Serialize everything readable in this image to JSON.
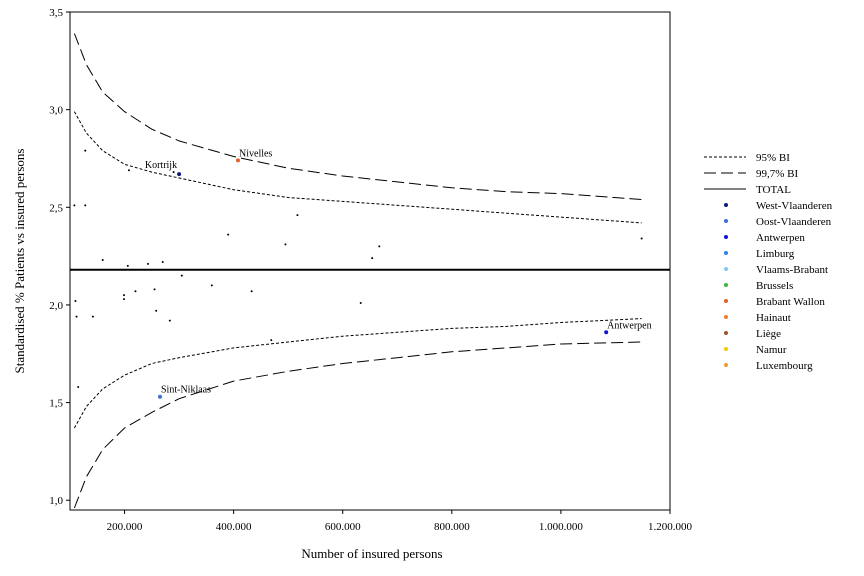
{
  "chart_data": {
    "type": "scatter",
    "xlabel": "Number of insured persons",
    "ylabel": "Standardised % Patients vs insured persons",
    "xlim": [
      100000,
      1200000
    ],
    "ylim": [
      0.95,
      3.5
    ],
    "xticks": [
      200000,
      400000,
      600000,
      800000,
      1000000,
      1200000
    ],
    "xtick_labels": [
      "200.000",
      "400.000",
      "600.000",
      "800.000",
      "1.000.000",
      "1.200.000"
    ],
    "yticks": [
      1.0,
      1.5,
      2.0,
      2.5,
      3.0,
      3.5
    ],
    "ytick_labels": [
      "1,0",
      "1,5",
      "2,0",
      "2,5",
      "3,0",
      "3,5"
    ],
    "total": 2.18,
    "funnel": {
      "x": [
        108000,
        130000,
        160000,
        200000,
        250000,
        300000,
        400000,
        500000,
        600000,
        700000,
        800000,
        900000,
        1000000,
        1148000
      ],
      "ci95_upper": [
        2.99,
        2.88,
        2.79,
        2.72,
        2.68,
        2.65,
        2.59,
        2.55,
        2.53,
        2.51,
        2.49,
        2.47,
        2.45,
        2.42
      ],
      "ci95_lower": [
        1.37,
        1.48,
        1.57,
        1.64,
        1.7,
        1.73,
        1.78,
        1.81,
        1.84,
        1.86,
        1.88,
        1.89,
        1.91,
        1.93
      ],
      "ci997_upper": [
        3.39,
        3.23,
        3.09,
        2.99,
        2.9,
        2.84,
        2.76,
        2.7,
        2.66,
        2.63,
        2.6,
        2.58,
        2.57,
        2.54
      ],
      "ci997_lower": [
        0.96,
        1.12,
        1.26,
        1.37,
        1.45,
        1.52,
        1.61,
        1.66,
        1.7,
        1.73,
        1.76,
        1.78,
        1.8,
        1.81
      ]
    },
    "legend": {
      "position": "right",
      "lines": [
        {
          "label": "95% BI",
          "style": "dotted"
        },
        {
          "label": "99,7% BI",
          "style": "dashed"
        },
        {
          "label": "TOTAL",
          "style": "solid"
        }
      ],
      "provinces": [
        {
          "label": "West-Vlaanderen",
          "color": "#0b1f7a"
        },
        {
          "label": "Oost-Vlaanderen",
          "color": "#3f6fd6"
        },
        {
          "label": "Antwerpen",
          "color": "#1414d6"
        },
        {
          "label": "Limburg",
          "color": "#2a86e6"
        },
        {
          "label": "Vlaams-Brabant",
          "color": "#7fc6f0"
        },
        {
          "label": "Brussels",
          "color": "#3cb83c"
        },
        {
          "label": "Brabant Wallon",
          "color": "#e0622a"
        },
        {
          "label": "Hainaut",
          "color": "#f07d2a"
        },
        {
          "label": "Liège",
          "color": "#a0522d"
        },
        {
          "label": "Namur",
          "color": "#f5c800"
        },
        {
          "label": "Luxembourg",
          "color": "#f09a30"
        }
      ]
    },
    "points": [
      {
        "x": 108000,
        "y": 2.51
      },
      {
        "x": 110000,
        "y": 2.02
      },
      {
        "x": 112000,
        "y": 1.94
      },
      {
        "x": 115000,
        "y": 1.58
      },
      {
        "x": 128000,
        "y": 2.79
      },
      {
        "x": 128000,
        "y": 2.51
      },
      {
        "x": 142000,
        "y": 1.94
      },
      {
        "x": 160000,
        "y": 2.23
      },
      {
        "x": 199000,
        "y": 2.05
      },
      {
        "x": 199000,
        "y": 2.03
      },
      {
        "x": 206000,
        "y": 2.2
      },
      {
        "x": 208000,
        "y": 2.69
      },
      {
        "x": 220000,
        "y": 2.07
      },
      {
        "x": 243000,
        "y": 2.21
      },
      {
        "x": 255000,
        "y": 2.08
      },
      {
        "x": 258000,
        "y": 1.97
      },
      {
        "x": 270000,
        "y": 2.22
      },
      {
        "x": 283000,
        "y": 1.92
      },
      {
        "x": 290000,
        "y": 2.68
      },
      {
        "x": 305000,
        "y": 2.15
      },
      {
        "x": 360000,
        "y": 2.1
      },
      {
        "x": 390000,
        "y": 2.36
      },
      {
        "x": 433000,
        "y": 2.07
      },
      {
        "x": 469000,
        "y": 1.82
      },
      {
        "x": 495000,
        "y": 2.31
      },
      {
        "x": 517000,
        "y": 2.46
      },
      {
        "x": 633000,
        "y": 2.01
      },
      {
        "x": 654000,
        "y": 2.24
      },
      {
        "x": 667000,
        "y": 2.3
      },
      {
        "x": 1148000,
        "y": 2.34
      }
    ],
    "labeled_points": [
      {
        "label": "Nivelles",
        "x": 408000,
        "y": 2.74,
        "province": "Brabant Wallon"
      },
      {
        "label": "Kortrijk",
        "x": 300000,
        "y": 2.67,
        "province": "West-Vlaanderen"
      },
      {
        "label": "Sint-Niklaas",
        "x": 265000,
        "y": 1.53,
        "province": "Oost-Vlaanderen"
      },
      {
        "label": "Antwerpen",
        "x": 1083000,
        "y": 1.86,
        "province": "Antwerpen"
      }
    ]
  }
}
